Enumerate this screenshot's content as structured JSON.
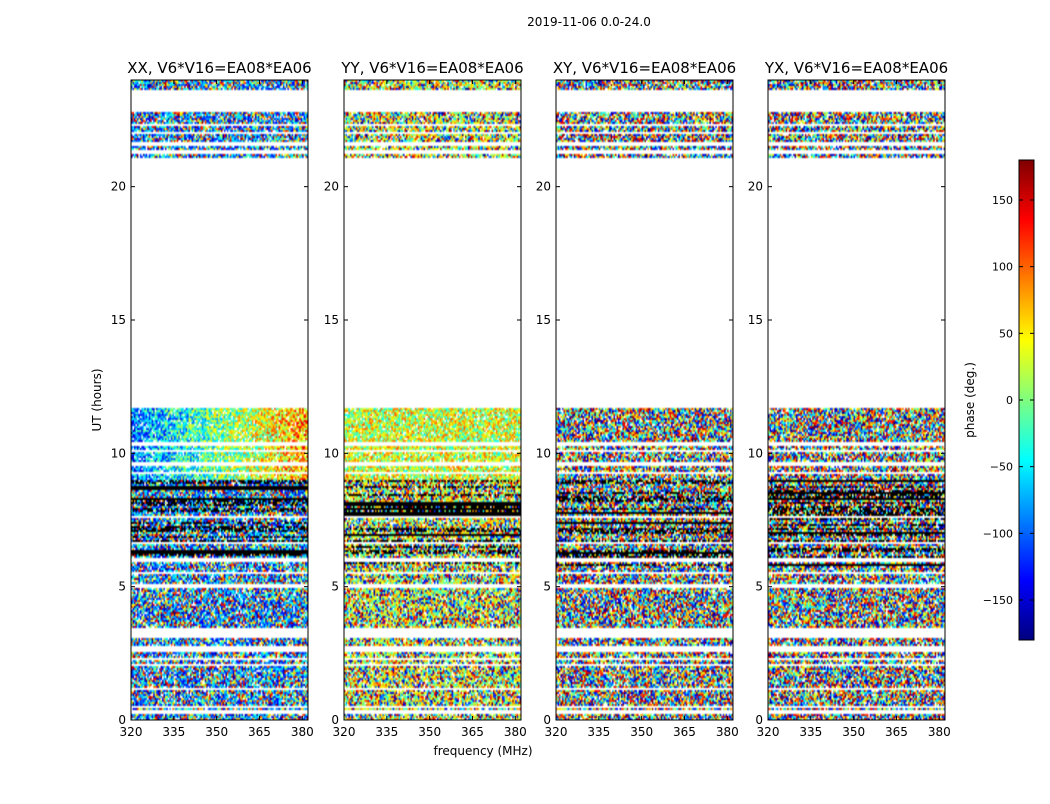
{
  "figure": {
    "suptitle": "2019-11-06 0.0-24.0",
    "xlabel": "frequency (MHz)",
    "ylabel": "UT (hours)"
  },
  "colorbar": {
    "label": "phase (deg.)",
    "range": [
      -180,
      180
    ],
    "ticks": [
      -150,
      -100,
      -50,
      0,
      50,
      100,
      150
    ],
    "tick_labels": [
      "−150",
      "−100",
      "−50",
      "0",
      "50",
      "100",
      "150"
    ],
    "colormap": "jet",
    "colors": [
      "#00007f",
      "#0000ff",
      "#007fff",
      "#00ffff",
      "#7fff7f",
      "#ffff00",
      "#ff7f00",
      "#ff0000",
      "#7f0000"
    ]
  },
  "chart_data": [
    {
      "type": "heatmap",
      "title": "XX, V6*V16=EA08*EA06",
      "xlim": [
        320,
        382
      ],
      "xticks": [
        320,
        335,
        350,
        365,
        380
      ],
      "ylim": [
        0,
        24
      ],
      "yticks": [
        0,
        5,
        10,
        15,
        20
      ],
      "bias": -90
    },
    {
      "type": "heatmap",
      "title": "YY, V6*V16=EA08*EA06",
      "xlim": [
        320,
        382
      ],
      "xticks": [
        320,
        335,
        350,
        365,
        380
      ],
      "ylim": [
        0,
        24
      ],
      "yticks": [
        0,
        5,
        10,
        15,
        20
      ],
      "bias": 30
    },
    {
      "type": "heatmap",
      "title": "XY, V6*V16=EA08*EA06",
      "xlim": [
        320,
        382
      ],
      "xticks": [
        320,
        335,
        350,
        365,
        380
      ],
      "ylim": [
        0,
        24
      ],
      "yticks": [
        0,
        5,
        10,
        15,
        20
      ],
      "bias": null
    },
    {
      "type": "heatmap",
      "title": "YX, V6*V16=EA08*EA06",
      "xlim": [
        320,
        382
      ],
      "xticks": [
        320,
        335,
        350,
        365,
        380
      ],
      "ylim": [
        0,
        24
      ],
      "yticks": [
        0,
        5,
        10,
        15,
        20
      ],
      "bias": null
    }
  ],
  "data_coverage_hours": [
    [
      0,
      2.0
    ],
    [
      2.1,
      2.25
    ],
    [
      2.35,
      2.55
    ],
    [
      2.65,
      3.1
    ],
    [
      3.45,
      4.95
    ],
    [
      5.1,
      9.0
    ],
    [
      9.0,
      11.7
    ],
    [
      21.05,
      22.8
    ],
    [
      23.6,
      24.0
    ]
  ],
  "blank_rows_hours": [
    0.3,
    0.5,
    1.15,
    2.7,
    5.5,
    6.0,
    6.65,
    7.6,
    9.25,
    9.6,
    10.1,
    10.35,
    21.3,
    21.6,
    22.0,
    22.3
  ]
}
